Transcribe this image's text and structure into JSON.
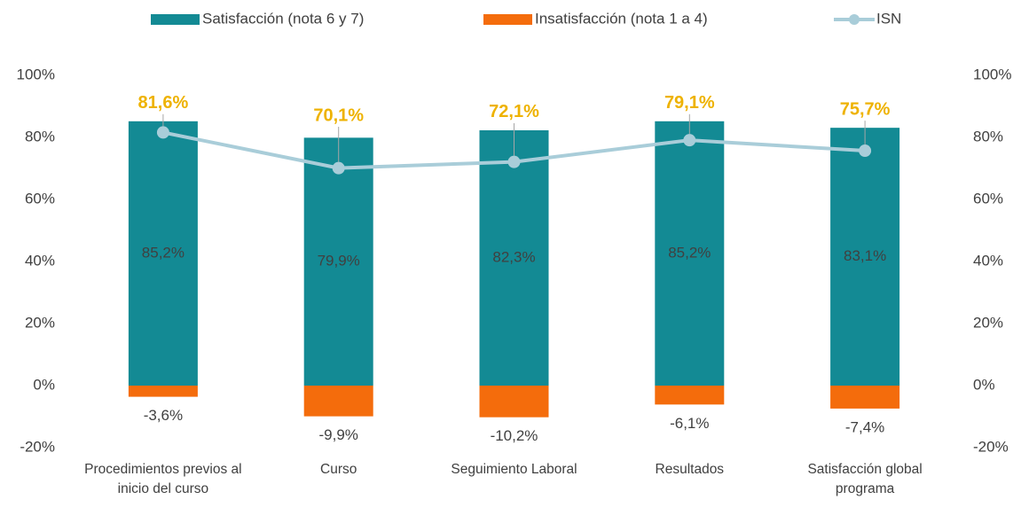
{
  "chart_data": {
    "type": "bar",
    "categories": [
      "Procedimientos previos al inicio del curso",
      "Curso",
      "Seguimiento Laboral",
      "Resultados",
      "Satisfacción global programa"
    ],
    "series": [
      {
        "name": "Satisfacción (nota 6 y 7)",
        "color": "#138a94",
        "values": [
          85.2,
          79.9,
          82.3,
          85.2,
          83.1
        ],
        "value_labels": [
          "85,2%",
          "79,9%",
          "82,3%",
          "85,2%",
          "83,1%"
        ]
      },
      {
        "name": "Insatisfacción (nota 1 a 4)",
        "color": "#f46c0c",
        "values": [
          -3.6,
          -9.9,
          -10.2,
          -6.1,
          -7.4
        ],
        "value_labels": [
          "-3,6%",
          "-9,9%",
          "-10,2%",
          "-6,1%",
          "-7,4%"
        ]
      },
      {
        "name": "ISN",
        "type": "line",
        "color": "#a9cdd9",
        "label_color": "#eeb200",
        "axis": "y2",
        "values": [
          81.6,
          70.1,
          72.1,
          79.1,
          75.7
        ],
        "value_labels": [
          "81,6%",
          "70,1%",
          "72,1%",
          "79,1%",
          "75,7%"
        ]
      }
    ],
    "ylim": [
      -20,
      100
    ],
    "yticks": [
      {
        "value": -20,
        "label": "-20%"
      },
      {
        "value": 0,
        "label": "0%"
      },
      {
        "value": 20,
        "label": "20%"
      },
      {
        "value": 40,
        "label": "40%"
      },
      {
        "value": 60,
        "label": "60%"
      },
      {
        "value": 80,
        "label": "80%"
      },
      {
        "value": 100,
        "label": "100%"
      }
    ],
    "y2lim": [
      -20,
      100
    ],
    "y2ticks": [
      {
        "value": -20,
        "label": "-20%"
      },
      {
        "value": 0,
        "label": "0%"
      },
      {
        "value": 20,
        "label": "20%"
      },
      {
        "value": 40,
        "label": "40%"
      },
      {
        "value": 60,
        "label": "60%"
      },
      {
        "value": 80,
        "label": "80%"
      },
      {
        "value": 100,
        "label": "100%"
      }
    ],
    "stacked": true,
    "grid": false,
    "legend": "top"
  }
}
